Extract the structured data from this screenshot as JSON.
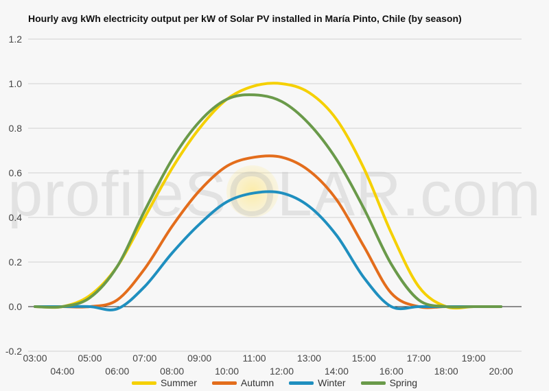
{
  "chart_data": {
    "type": "line",
    "title": "Hourly avg kWh electricity output per kW of Solar PV installed in María Pinto, Chile (by season)",
    "watermark": "profileSOLAR.com",
    "ylim": [
      -0.2,
      1.2
    ],
    "y_ticks": [
      "1.2",
      "1.0",
      "0.8",
      "0.6",
      "0.4",
      "0.2",
      "0.0",
      "-0.2"
    ],
    "y_tick_values": [
      1.2,
      1.0,
      0.8,
      0.6,
      0.4,
      0.2,
      0.0,
      -0.2
    ],
    "x_ticks_top": [
      "03:00",
      "05:00",
      "07:00",
      "09:00",
      "11:00",
      "13:00",
      "15:00",
      "17:00",
      "19:00"
    ],
    "x_ticks_bottom": [
      "04:00",
      "06:00",
      "08:00",
      "10:00",
      "12:00",
      "14:00",
      "16:00",
      "18:00",
      "20:00"
    ],
    "x": [
      3,
      4,
      5,
      6,
      7,
      8,
      9,
      10,
      11,
      12,
      13,
      14,
      15,
      16,
      17,
      18,
      19,
      20
    ],
    "series": [
      {
        "name": "Summer",
        "color": "#f5d000",
        "values": [
          0.0,
          0.0,
          0.05,
          0.18,
          0.4,
          0.62,
          0.8,
          0.93,
          0.99,
          1.0,
          0.96,
          0.84,
          0.62,
          0.33,
          0.09,
          0.0,
          0.0,
          0.0
        ]
      },
      {
        "name": "Autumn",
        "color": "#e36d1c",
        "values": [
          0.0,
          0.0,
          0.0,
          0.03,
          0.17,
          0.36,
          0.52,
          0.63,
          0.67,
          0.67,
          0.61,
          0.48,
          0.27,
          0.06,
          0.0,
          0.0,
          0.0,
          0.0
        ]
      },
      {
        "name": "Winter",
        "color": "#1f8fbf",
        "values": [
          0.0,
          0.0,
          0.0,
          -0.01,
          0.09,
          0.24,
          0.37,
          0.47,
          0.51,
          0.51,
          0.45,
          0.32,
          0.13,
          0.0,
          0.0,
          0.0,
          0.0,
          0.0
        ]
      },
      {
        "name": "Spring",
        "color": "#6a9a4a",
        "values": [
          0.0,
          0.0,
          0.04,
          0.18,
          0.43,
          0.66,
          0.83,
          0.93,
          0.95,
          0.92,
          0.82,
          0.66,
          0.44,
          0.19,
          0.03,
          0.0,
          0.0,
          0.0
        ]
      }
    ]
  }
}
